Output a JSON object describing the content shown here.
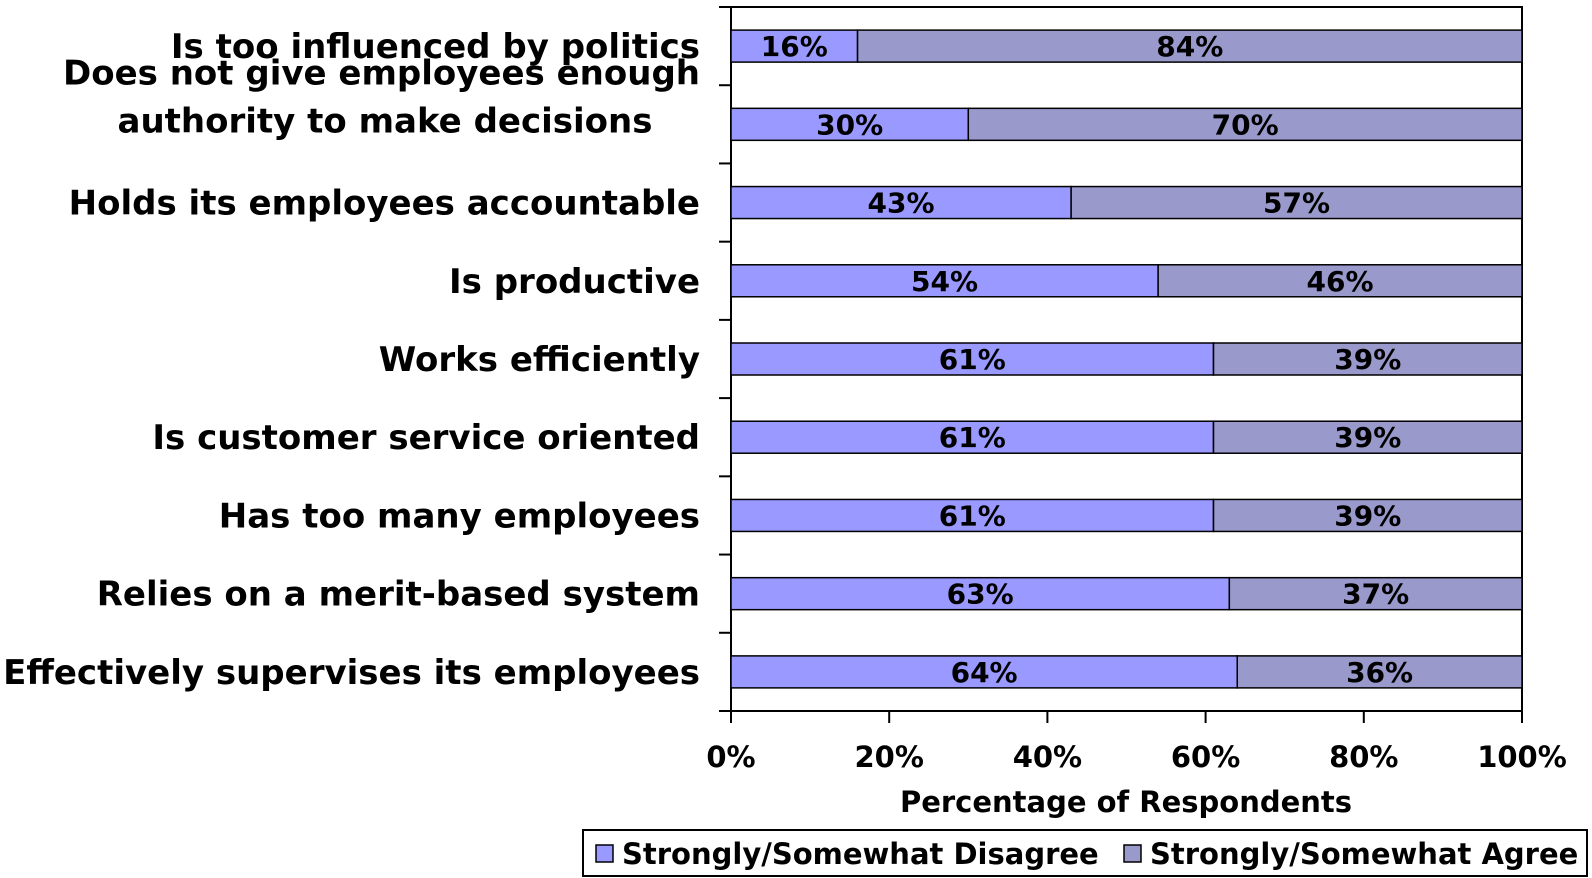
{
  "chart_data": {
    "type": "bar",
    "orientation": "horizontal",
    "stacked": "percent",
    "categories": [
      [
        "Is too influenced by politics"
      ],
      [
        "Does not give employees enough",
        "authority to make decisions"
      ],
      [
        "Holds its employees accountable"
      ],
      [
        "Is productive"
      ],
      [
        "Works efficiently"
      ],
      [
        "Is customer service oriented"
      ],
      [
        "Has too many employees"
      ],
      [
        "Relies on a merit-based system"
      ],
      [
        "Effectively supervises its employees"
      ]
    ],
    "series": [
      {
        "name": "Strongly/Somewhat Disagree",
        "color": "#9999ff",
        "values": [
          16,
          30,
          43,
          54,
          61,
          61,
          61,
          63,
          64
        ],
        "labels": [
          "16%",
          "30%",
          "43%",
          "54%",
          "61%",
          "61%",
          "61%",
          "63%",
          "64%"
        ]
      },
      {
        "name": "Strongly/Somewhat Agree",
        "color": "#9999cc",
        "values": [
          84,
          70,
          57,
          46,
          39,
          39,
          39,
          37,
          36
        ],
        "labels": [
          "84%",
          "70%",
          "57%",
          "46%",
          "39%",
          "39%",
          "39%",
          "37%",
          "36%"
        ]
      }
    ],
    "xlim": [
      0,
      100
    ],
    "xticks": [
      "0%",
      "20%",
      "40%",
      "60%",
      "80%",
      "100%"
    ],
    "xlabel": "Percentage of Respondents",
    "ylabel": "",
    "grid": false,
    "legend_position": "bottom-right"
  }
}
